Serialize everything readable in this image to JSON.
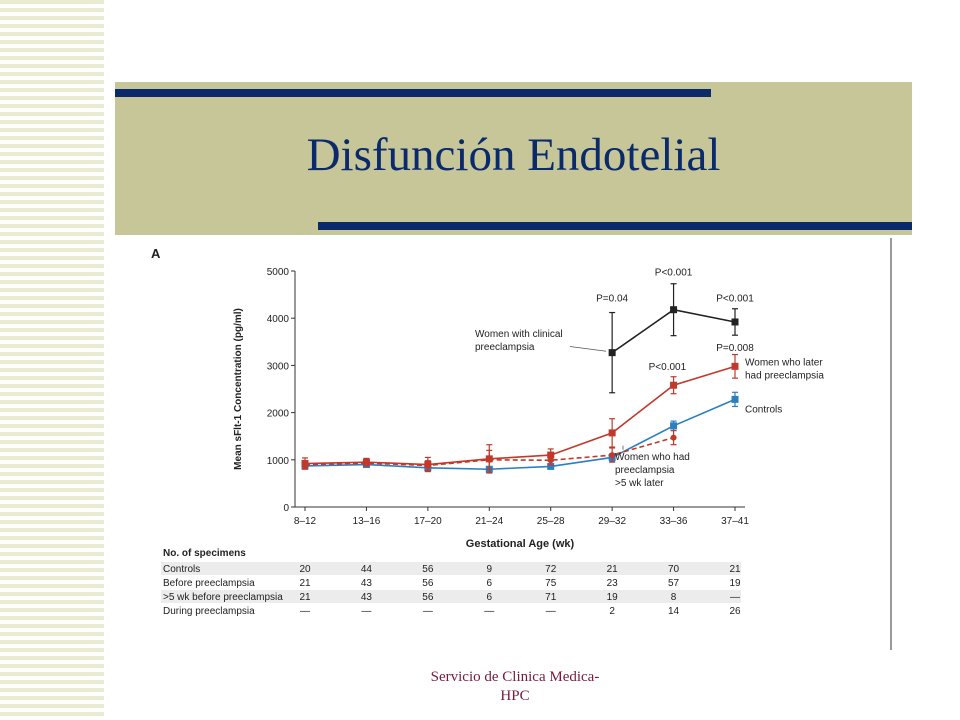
{
  "slide": {
    "title": "Disfunción Endotelial",
    "footer_line1": "Servicio de Clinica Medica-",
    "footer_line2": "HPC"
  },
  "colors": {
    "title_band": "#c6c699",
    "title_text": "#0a2a6b",
    "clinical": "#222222",
    "later_preeclampsia": "#c0392b",
    "controls": "#2a7fc1"
  },
  "chart_data": {
    "type": "line",
    "panel_label": "A",
    "xlabel": "Gestational Age (wk)",
    "ylabel": "Mean sFlt-1 Concentration (pg/ml)",
    "ylim": [
      0,
      5000
    ],
    "yticks": [
      0,
      1000,
      2000,
      3000,
      4000,
      5000
    ],
    "categories": [
      "8–12",
      "13–16",
      "17–20",
      "21–24",
      "25–28",
      "29–32",
      "33–36",
      "37–41"
    ],
    "series": [
      {
        "name": "Controls",
        "color": "#2a7fc1",
        "style": "solid",
        "values": [
          870,
          900,
          830,
          800,
          860,
          1050,
          1720,
          2280
        ],
        "err": [
          60,
          50,
          50,
          40,
          40,
          80,
          100,
          150
        ]
      },
      {
        "name": "Women who later had preeclampsia",
        "color": "#c0392b",
        "style": "solid",
        "values": [
          920,
          950,
          900,
          1020,
          1100,
          1570,
          2580,
          2980
        ],
        "err": [
          120,
          80,
          150,
          300,
          130,
          300,
          180,
          250
        ]
      },
      {
        "name": "Women who had preeclampsia >5 wk later",
        "color": "#c0392b",
        "style": "dashed",
        "values": [
          900,
          930,
          880,
          1000,
          990,
          1100,
          1470,
          null
        ],
        "err": [
          80,
          60,
          100,
          200,
          100,
          150,
          150,
          null
        ]
      },
      {
        "name": "Women with clinical preeclampsia",
        "color": "#222222",
        "style": "solid",
        "values": [
          null,
          null,
          null,
          null,
          null,
          3270,
          4180,
          3920
        ],
        "err": [
          null,
          null,
          null,
          null,
          null,
          850,
          550,
          280
        ]
      }
    ],
    "annotations": [
      {
        "text": "P=0.04",
        "cat": 5,
        "y": 4350
      },
      {
        "text": "P<0.001",
        "cat": 6,
        "y": 4900
      },
      {
        "text": "P<0.001",
        "cat": 7,
        "y": 4350
      },
      {
        "text": "P<0.001",
        "cat": 5.9,
        "y": 2900
      },
      {
        "text": "P=0.008",
        "cat": 7,
        "y": 3300
      }
    ],
    "series_labels": [
      {
        "lines": [
          "Women with clinical",
          "preeclampsia"
        ]
      },
      {
        "lines": [
          "Women who later",
          "had preeclampsia"
        ]
      },
      {
        "lines": [
          "Controls"
        ]
      },
      {
        "lines": [
          "Women who had",
          "preeclampsia",
          ">5 wk later"
        ]
      }
    ],
    "table": {
      "title": "No. of specimens",
      "rows": [
        {
          "label": "Controls",
          "values": [
            "20",
            "44",
            "56",
            "9",
            "72",
            "21",
            "70",
            "21"
          ]
        },
        {
          "label": "Before preeclampsia",
          "values": [
            "21",
            "43",
            "56",
            "6",
            "75",
            "23",
            "57",
            "19"
          ]
        },
        {
          "label": ">5 wk before preeclampsia",
          "values": [
            "21",
            "43",
            "56",
            "6",
            "71",
            "19",
            "8",
            "—"
          ]
        },
        {
          "label": "During preeclampsia",
          "values": [
            "—",
            "—",
            "—",
            "—",
            "—",
            "2",
            "14",
            "26"
          ]
        }
      ]
    }
  }
}
